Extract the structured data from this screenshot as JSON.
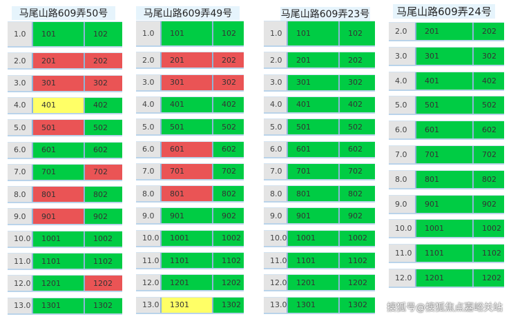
{
  "colors": {
    "sold": "#ea5455",
    "available": "#00cc44",
    "reserved": "#ffff66",
    "floor": "#e4e4e4"
  },
  "buildings": [
    {
      "title": "马尾山路609弄50号",
      "floors": [
        {
          "floor": "1.0",
          "units": [
            [
              "101",
              "g"
            ],
            [
              "102",
              "g"
            ]
          ]
        },
        {
          "floor": "2.0",
          "units": [
            [
              "201",
              "r"
            ],
            [
              "202",
              "r"
            ]
          ]
        },
        {
          "floor": "3.0",
          "units": [
            [
              "301",
              "r"
            ],
            [
              "302",
              "r"
            ]
          ]
        },
        {
          "floor": "4.0",
          "units": [
            [
              "401",
              "y"
            ],
            [
              "402",
              "g"
            ]
          ]
        },
        {
          "floor": "5.0",
          "units": [
            [
              "501",
              "r"
            ],
            [
              "502",
              "g"
            ]
          ]
        },
        {
          "floor": "6.0",
          "units": [
            [
              "601",
              "g"
            ],
            [
              "602",
              "g"
            ]
          ]
        },
        {
          "floor": "7.0",
          "units": [
            [
              "701",
              "g"
            ],
            [
              "702",
              "r"
            ]
          ]
        },
        {
          "floor": "8.0",
          "units": [
            [
              "801",
              "r"
            ],
            [
              "802",
              "g"
            ]
          ]
        },
        {
          "floor": "9.0",
          "units": [
            [
              "901",
              "r"
            ],
            [
              "902",
              "g"
            ]
          ]
        },
        {
          "floor": "10.0",
          "units": [
            [
              "1001",
              "g"
            ],
            [
              "1002",
              "g"
            ]
          ]
        },
        {
          "floor": "11.0",
          "units": [
            [
              "1101",
              "g"
            ],
            [
              "1102",
              "g"
            ]
          ]
        },
        {
          "floor": "12.0",
          "units": [
            [
              "1201",
              "g"
            ],
            [
              "1202",
              "r"
            ]
          ]
        },
        {
          "floor": "13.0",
          "units": [
            [
              "1301",
              "g"
            ],
            [
              "1302",
              "g"
            ]
          ]
        }
      ]
    },
    {
      "title": "马尾山路609弄49号",
      "floors": [
        {
          "floor": "1.0",
          "units": [
            [
              "101",
              "g"
            ],
            [
              "102",
              "g"
            ]
          ]
        },
        {
          "floor": "2.0",
          "units": [
            [
              "201",
              "r"
            ],
            [
              "202",
              "r"
            ]
          ]
        },
        {
          "floor": "3.0",
          "units": [
            [
              "301",
              "r"
            ],
            [
              "302",
              "r"
            ]
          ]
        },
        {
          "floor": "4.0",
          "units": [
            [
              "401",
              "g"
            ],
            [
              "402",
              "g"
            ]
          ]
        },
        {
          "floor": "5.0",
          "units": [
            [
              "501",
              "g"
            ],
            [
              "502",
              "g"
            ]
          ]
        },
        {
          "floor": "6.0",
          "units": [
            [
              "601",
              "r"
            ],
            [
              "602",
              "g"
            ]
          ]
        },
        {
          "floor": "7.0",
          "units": [
            [
              "701",
              "r"
            ],
            [
              "702",
              "g"
            ]
          ]
        },
        {
          "floor": "8.0",
          "units": [
            [
              "801",
              "r"
            ],
            [
              "802",
              "g"
            ]
          ]
        },
        {
          "floor": "9.0",
          "units": [
            [
              "901",
              "g"
            ],
            [
              "902",
              "g"
            ]
          ]
        },
        {
          "floor": "10.0",
          "units": [
            [
              "1001",
              "g"
            ],
            [
              "1002",
              "g"
            ]
          ]
        },
        {
          "floor": "11.0",
          "units": [
            [
              "1101",
              "g"
            ],
            [
              "1102",
              "g"
            ]
          ]
        },
        {
          "floor": "12.0",
          "units": [
            [
              "1201",
              "g"
            ],
            [
              "1202",
              "g"
            ]
          ]
        },
        {
          "floor": "13.0",
          "units": [
            [
              "1301",
              "y"
            ],
            [
              "1302",
              "g"
            ]
          ]
        }
      ]
    },
    {
      "title": "马尾山路609弄23号",
      "floors": [
        {
          "floor": "1.0",
          "units": [
            [
              "101",
              "g"
            ],
            [
              "102",
              "g"
            ]
          ]
        },
        {
          "floor": "2.0",
          "units": [
            [
              "201",
              "g"
            ],
            [
              "202",
              "g"
            ]
          ]
        },
        {
          "floor": "3.0",
          "units": [
            [
              "301",
              "g"
            ],
            [
              "302",
              "g"
            ]
          ]
        },
        {
          "floor": "4.0",
          "units": [
            [
              "401",
              "g"
            ],
            [
              "402",
              "g"
            ]
          ]
        },
        {
          "floor": "5.0",
          "units": [
            [
              "501",
              "g"
            ],
            [
              "502",
              "g"
            ]
          ]
        },
        {
          "floor": "6.0",
          "units": [
            [
              "601",
              "g"
            ],
            [
              "602",
              "g"
            ]
          ]
        },
        {
          "floor": "7.0",
          "units": [
            [
              "701",
              "g"
            ],
            [
              "702",
              "g"
            ]
          ]
        },
        {
          "floor": "8.0",
          "units": [
            [
              "801",
              "g"
            ],
            [
              "802",
              "g"
            ]
          ]
        },
        {
          "floor": "9.0",
          "units": [
            [
              "901",
              "g"
            ],
            [
              "902",
              "g"
            ]
          ]
        },
        {
          "floor": "10.0",
          "units": [
            [
              "1001",
              "g"
            ],
            [
              "1002",
              "g"
            ]
          ]
        },
        {
          "floor": "11.0",
          "units": [
            [
              "1101",
              "g"
            ],
            [
              "1102",
              "g"
            ]
          ]
        },
        {
          "floor": "12.0",
          "units": [
            [
              "1201",
              "g"
            ],
            [
              "1202",
              "g"
            ]
          ]
        },
        {
          "floor": "13.0",
          "units": [
            [
              "1301",
              "g"
            ],
            [
              "1302",
              "g"
            ]
          ]
        }
      ]
    },
    {
      "title": "马尾山路609弄24号",
      "floors": [
        {
          "floor": "2.0",
          "units": [
            [
              "201",
              "g"
            ],
            [
              "202",
              "g"
            ]
          ]
        },
        {
          "floor": "3.0",
          "units": [
            [
              "301",
              "g"
            ],
            [
              "302",
              "g"
            ]
          ]
        },
        {
          "floor": "4.0",
          "units": [
            [
              "401",
              "g"
            ],
            [
              "402",
              "g"
            ]
          ]
        },
        {
          "floor": "5.0",
          "units": [
            [
              "501",
              "g"
            ],
            [
              "502",
              "g"
            ]
          ]
        },
        {
          "floor": "6.0",
          "units": [
            [
              "601",
              "g"
            ],
            [
              "602",
              "g"
            ]
          ]
        },
        {
          "floor": "7.0",
          "units": [
            [
              "701",
              "g"
            ],
            [
              "702",
              "g"
            ]
          ]
        },
        {
          "floor": "8.0",
          "units": [
            [
              "801",
              "g"
            ],
            [
              "802",
              "g"
            ]
          ]
        },
        {
          "floor": "9.0",
          "units": [
            [
              "901",
              "g"
            ],
            [
              "902",
              "g"
            ]
          ]
        },
        {
          "floor": "10.0",
          "units": [
            [
              "1001",
              "g"
            ],
            [
              "1002",
              "g"
            ]
          ]
        },
        {
          "floor": "11.0",
          "units": [
            [
              "1101",
              "g"
            ],
            [
              "1102",
              "g"
            ]
          ]
        },
        {
          "floor": "12.0",
          "units": [
            [
              "1201",
              "g"
            ],
            [
              "1202",
              "g"
            ]
          ]
        }
      ]
    }
  ],
  "watermark": "搜狐号@搜狐焦点嘉峪关站"
}
